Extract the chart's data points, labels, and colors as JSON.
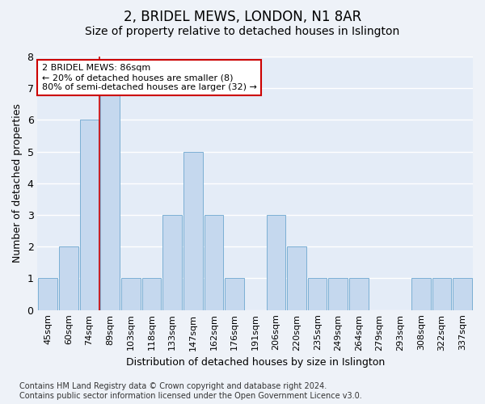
{
  "title": "2, BRIDEL MEWS, LONDON, N1 8AR",
  "subtitle": "Size of property relative to detached houses in Islington",
  "xlabel": "Distribution of detached houses by size in Islington",
  "ylabel": "Number of detached properties",
  "categories": [
    "45sqm",
    "60sqm",
    "74sqm",
    "89sqm",
    "103sqm",
    "118sqm",
    "133sqm",
    "147sqm",
    "162sqm",
    "176sqm",
    "191sqm",
    "206sqm",
    "220sqm",
    "235sqm",
    "249sqm",
    "264sqm",
    "279sqm",
    "293sqm",
    "308sqm",
    "322sqm",
    "337sqm"
  ],
  "values": [
    1,
    2,
    6,
    7,
    1,
    1,
    3,
    5,
    3,
    1,
    0,
    3,
    2,
    1,
    1,
    1,
    0,
    0,
    1,
    1,
    1
  ],
  "bar_color": "#c5d8ee",
  "bar_edge_color": "#7bafd4",
  "highlight_bar_index": 3,
  "highlight_line_color": "#cc0000",
  "annotation_text": "2 BRIDEL MEWS: 86sqm\n← 20% of detached houses are smaller (8)\n80% of semi-detached houses are larger (32) →",
  "annotation_box_facecolor": "#ffffff",
  "annotation_border_color": "#cc0000",
  "ylim": [
    0,
    8
  ],
  "yticks": [
    0,
    1,
    2,
    3,
    4,
    5,
    6,
    7,
    8
  ],
  "footer": "Contains HM Land Registry data © Crown copyright and database right 2024.\nContains public sector information licensed under the Open Government Licence v3.0.",
  "background_color": "#eef2f8",
  "plot_background_color": "#e4ecf7",
  "grid_color": "#ffffff",
  "title_fontsize": 12,
  "subtitle_fontsize": 10,
  "axis_label_fontsize": 9,
  "tick_fontsize": 8,
  "annotation_fontsize": 8,
  "footer_fontsize": 7
}
